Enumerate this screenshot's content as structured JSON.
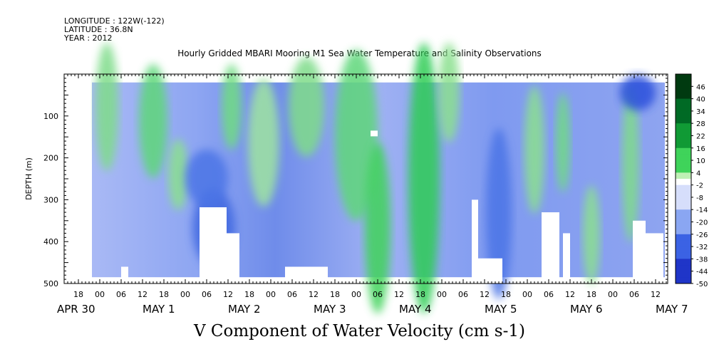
{
  "header": {
    "longitude": "LONGITUDE : 122W(-122)",
    "latitude": "LATITUDE : 36.8N",
    "year": "YEAR : 2012"
  },
  "chart_data": {
    "type": "heatmap",
    "title": "Hourly Gridded MBARI Mooring M1 Sea Water Temperature and Salinity Observations",
    "xlabel": "V Component of Water Velocity (cm s-1)",
    "ylabel": "DEPTH (m)",
    "units": "cm s-1",
    "ylim": [
      500,
      0
    ],
    "y_ticks": [
      "100",
      "200",
      "300",
      "400",
      "500"
    ],
    "x_hour_ticks": [
      "18",
      "00",
      "06",
      "12",
      "18",
      "00",
      "06",
      "12",
      "18",
      "00",
      "06",
      "12",
      "18",
      "00",
      "06",
      "12",
      "18",
      "00",
      "06",
      "12",
      "18",
      "00",
      "06",
      "12",
      "18",
      "00",
      "06",
      "12"
    ],
    "x_day_labels": [
      "APR 30",
      "MAY  1",
      "MAY  2",
      "MAY  3",
      "MAY  4",
      "MAY  5",
      "MAY  6",
      "MAY  7"
    ],
    "colorbar_labels": [
      "46",
      "40",
      "34",
      "28",
      "22",
      "16",
      "10",
      "4",
      "-2",
      "-8",
      "-14",
      "-20",
      "-26",
      "-32",
      "-38",
      "-44",
      "-50"
    ],
    "colorbar_range": [
      -50,
      52
    ],
    "colors": {
      "zero": "#ffffff",
      "mid_blue": "#8aa6f2",
      "deep_blue": "#1e40d8",
      "darkest": "#000a5a",
      "light_green": "#bff0b5",
      "mid_green": "#3fd35a",
      "darkest_green": "#004a15"
    }
  }
}
